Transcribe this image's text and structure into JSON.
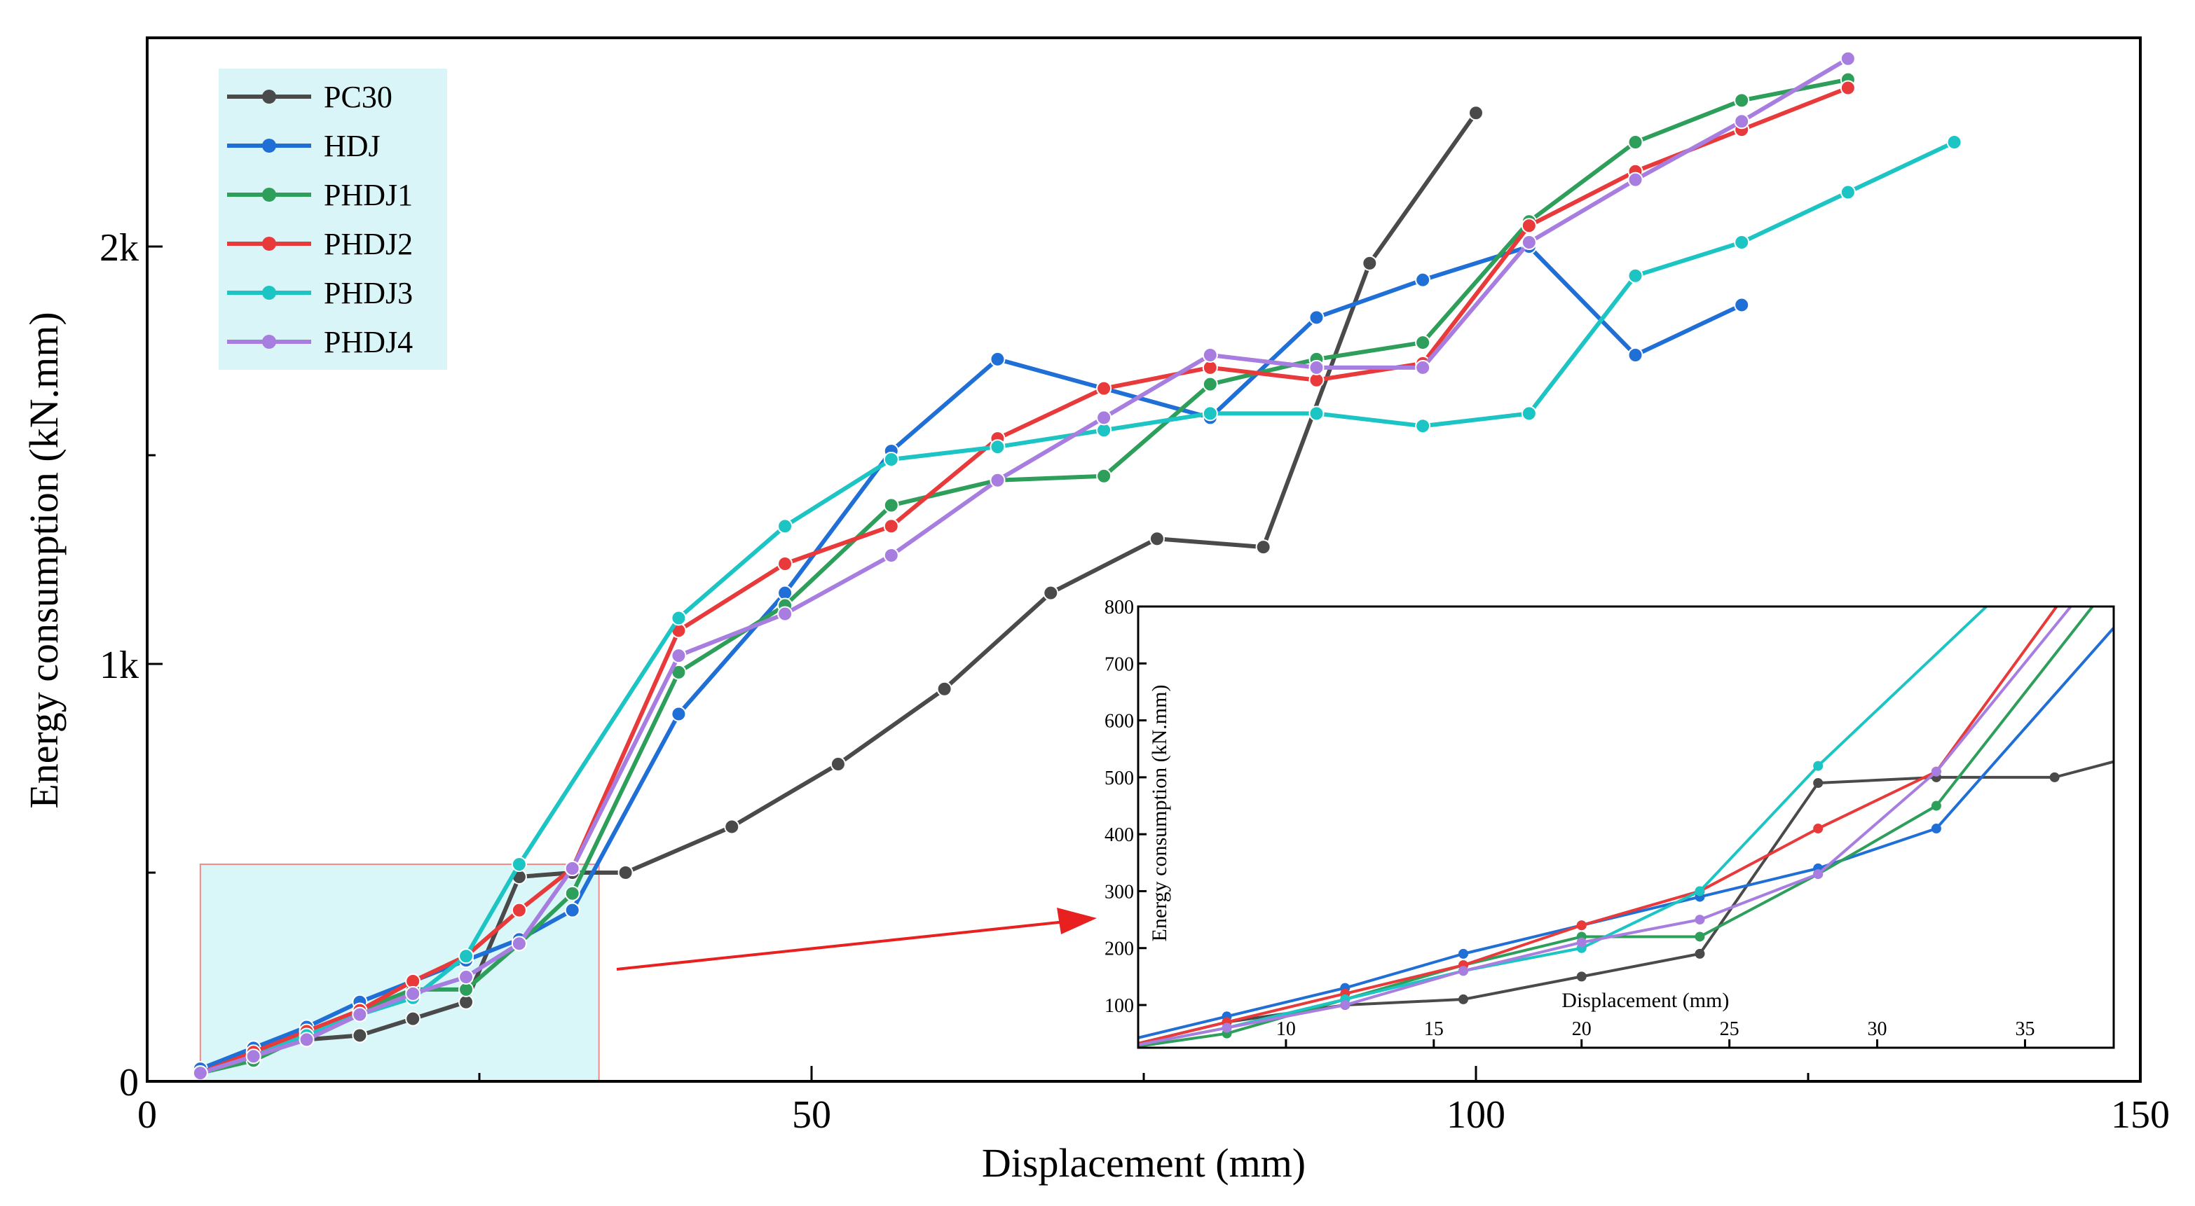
{
  "chart_data": {
    "type": "line",
    "xlabel": "Displacement (mm)",
    "ylabel": "Energy consumption (kN.mm)",
    "xlim": [
      0,
      150
    ],
    "ylim": [
      0,
      2500
    ],
    "x_ticks": [
      0,
      50,
      100,
      150
    ],
    "x_tick_labels": [
      "0",
      "50",
      "100",
      "150"
    ],
    "y_ticks": [
      0,
      1000,
      2000
    ],
    "y_tick_labels": [
      "0",
      "1k",
      "2k"
    ],
    "grid": false,
    "legend": {
      "position": "top-left",
      "background": "#d9f5f7"
    },
    "series": [
      {
        "name": "PC30",
        "color": "#4a4a4a",
        "x": [
          4,
          8,
          12,
          16,
          20,
          24,
          28,
          32,
          36,
          44,
          52,
          60,
          68,
          76,
          84,
          92,
          100
        ],
        "y": [
          20,
          70,
          100,
          110,
          150,
          190,
          490,
          500,
          500,
          610,
          760,
          940,
          1170,
          1300,
          1280,
          1960,
          2320
        ]
      },
      {
        "name": "HDJ",
        "color": "#1f6fd6",
        "x": [
          4,
          8,
          12,
          16,
          20,
          24,
          28,
          32,
          40,
          48,
          56,
          64,
          72,
          80,
          88,
          96,
          104,
          112,
          120
        ],
        "y": [
          30,
          80,
          130,
          190,
          240,
          290,
          340,
          410,
          880,
          1170,
          1510,
          1730,
          1660,
          1590,
          1830,
          1920,
          2000,
          1740,
          1860
        ]
      },
      {
        "name": "PHDJ1",
        "color": "#2e9e5b",
        "x": [
          4,
          8,
          12,
          16,
          20,
          24,
          28,
          32,
          40,
          48,
          56,
          64,
          72,
          80,
          88,
          96,
          104,
          112,
          120,
          128
        ],
        "y": [
          20,
          50,
          110,
          170,
          220,
          220,
          330,
          450,
          980,
          1140,
          1380,
          1440,
          1450,
          1670,
          1730,
          1770,
          2060,
          2250,
          2350,
          2400
        ]
      },
      {
        "name": "PHDJ2",
        "color": "#e83a3a",
        "x": [
          4,
          8,
          12,
          16,
          20,
          24,
          28,
          32,
          40,
          48,
          56,
          64,
          72,
          80,
          88,
          96,
          104,
          112,
          120,
          128
        ],
        "y": [
          20,
          70,
          120,
          170,
          240,
          300,
          410,
          510,
          1080,
          1240,
          1330,
          1540,
          1660,
          1710,
          1680,
          1720,
          2050,
          2180,
          2280,
          2380
        ]
      },
      {
        "name": "PHDJ3",
        "color": "#1cc4c4",
        "x": [
          4,
          8,
          12,
          16,
          20,
          24,
          28,
          40,
          48,
          56,
          64,
          72,
          80,
          88,
          96,
          104,
          112,
          120,
          128,
          136
        ],
        "y": [
          20,
          60,
          110,
          160,
          200,
          300,
          520,
          1110,
          1330,
          1490,
          1520,
          1560,
          1600,
          1600,
          1570,
          1600,
          1930,
          2010,
          2130,
          2250
        ]
      },
      {
        "name": "PHDJ4",
        "color": "#a77ee0",
        "x": [
          4,
          8,
          12,
          16,
          20,
          24,
          28,
          32,
          40,
          48,
          56,
          64,
          72,
          80,
          88,
          96,
          104,
          112,
          120,
          128
        ],
        "y": [
          20,
          60,
          100,
          160,
          210,
          250,
          330,
          510,
          1020,
          1120,
          1260,
          1440,
          1590,
          1740,
          1710,
          1710,
          2010,
          2160,
          2300,
          2450
        ]
      }
    ],
    "inset": {
      "xlabel": "Displacement (mm)",
      "ylabel": "Energy consumption (kN.mm)",
      "xlim": [
        5,
        38
      ],
      "ylim": [
        25,
        800
      ],
      "x_ticks": [
        10,
        15,
        20,
        25,
        30,
        35
      ],
      "x_tick_labels": [
        "10",
        "15",
        "20",
        "25",
        "30",
        "35"
      ],
      "y_ticks": [
        100,
        200,
        300,
        400,
        500,
        600,
        700,
        800
      ],
      "y_tick_labels": [
        "100",
        "200",
        "300",
        "400",
        "500",
        "600",
        "700",
        "800"
      ],
      "zoom_region": {
        "x": [
          4,
          34
        ],
        "y": [
          0,
          520
        ]
      }
    }
  }
}
